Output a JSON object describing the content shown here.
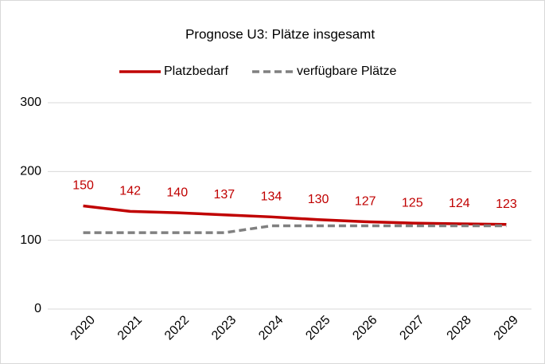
{
  "chart_data": {
    "type": "line",
    "title": "Prognose U3: Plätze insgesamt",
    "categories": [
      "2020",
      "2021",
      "2022",
      "2023",
      "2024",
      "2025",
      "2026",
      "2027",
      "2028",
      "2029"
    ],
    "series": [
      {
        "name": "Platzbedarf",
        "color": "#c00000",
        "dash": false,
        "data_labels": true,
        "values": [
          150,
          142,
          140,
          137,
          134,
          130,
          127,
          125,
          124,
          123
        ]
      },
      {
        "name": "verfügbare Plätze",
        "color": "#808080",
        "dash": true,
        "data_labels": false,
        "values": [
          111,
          111,
          111,
          111,
          121,
          121,
          121,
          121,
          121,
          121
        ]
      }
    ],
    "ylim": [
      0,
      300
    ],
    "yticks": [
      0,
      100,
      200,
      300
    ],
    "grid": true,
    "legend": "top"
  }
}
